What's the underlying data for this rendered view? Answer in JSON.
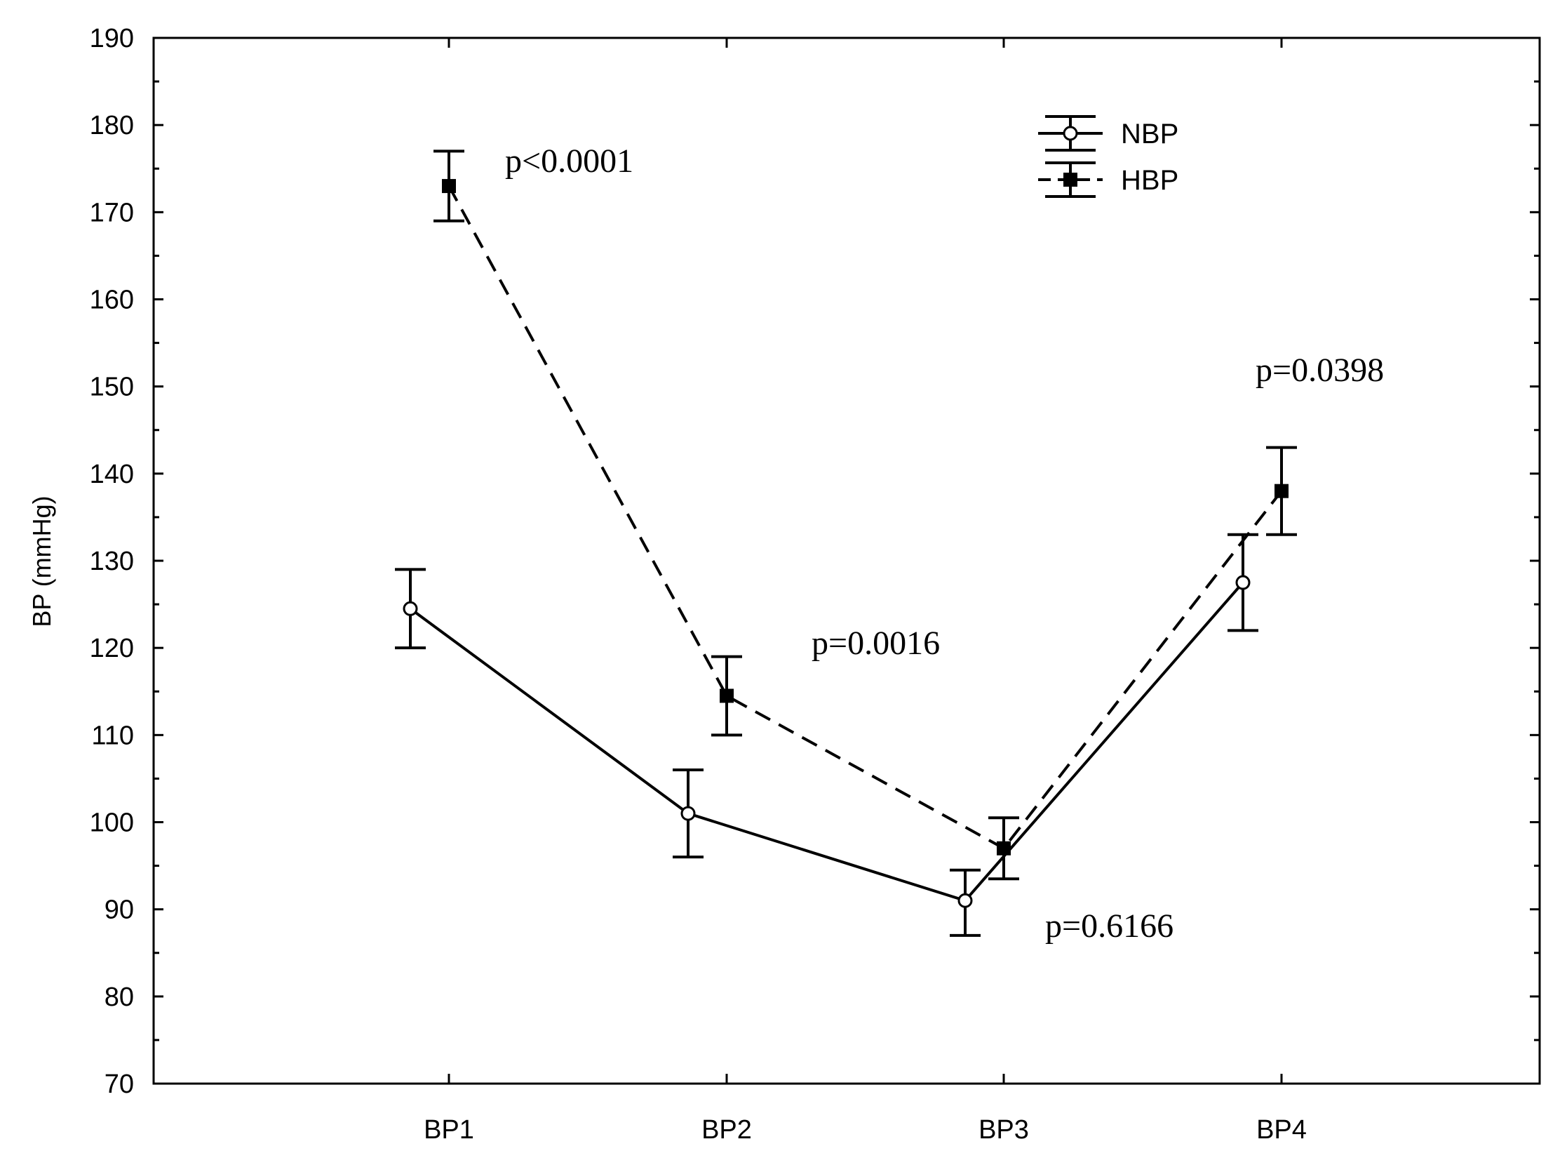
{
  "chart_data": {
    "type": "line",
    "title": "",
    "xlabel": "",
    "ylabel": "BP (mmHg)",
    "ylim": [
      70,
      190
    ],
    "yticks": [
      70,
      80,
      90,
      100,
      110,
      120,
      130,
      140,
      150,
      160,
      170,
      180,
      190
    ],
    "categories": [
      "BP1",
      "BP2",
      "BP3",
      "BP4"
    ],
    "grid": false,
    "legend": {
      "placement": "top-right",
      "entries": [
        "NBP",
        "HBP"
      ]
    },
    "series": [
      {
        "name": "NBP",
        "marker": "open-circle",
        "line_style": "solid",
        "values": [
          124.5,
          101,
          91,
          127.5
        ],
        "err_low": [
          120,
          96,
          87,
          122
        ],
        "err_high": [
          129,
          106,
          94.5,
          133
        ]
      },
      {
        "name": "HBP",
        "marker": "filled-square",
        "line_style": "dashed",
        "values": [
          173,
          114.5,
          97,
          138
        ],
        "err_low": [
          169,
          110,
          93.5,
          133
        ],
        "err_high": [
          177,
          119,
          100.5,
          143
        ]
      }
    ],
    "annotations": [
      {
        "text": "p<0.0001",
        "category": "BP1"
      },
      {
        "text": "p=0.0016",
        "category": "BP2"
      },
      {
        "text": "p=0.6166",
        "category": "BP3"
      },
      {
        "text": "p=0.0398",
        "category": "BP4"
      }
    ]
  }
}
